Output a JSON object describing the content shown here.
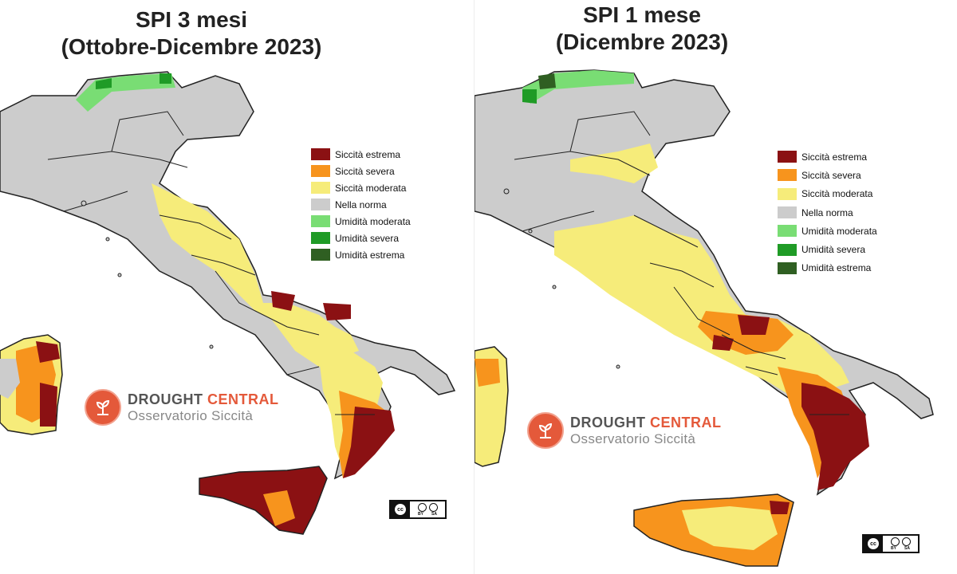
{
  "panels": [
    {
      "title_line1": "SPI 3 mesi",
      "title_line2": "(Ottobre-Dicembre 2023)"
    },
    {
      "title_line1": "SPI 1 mese",
      "title_line2": "(Dicembre 2023)"
    }
  ],
  "legend": [
    {
      "label": "Siccità estrema",
      "color": "#8b1113"
    },
    {
      "label": "Siccità severa",
      "color": "#f7941d"
    },
    {
      "label": "Siccità moderata",
      "color": "#f6ec7a"
    },
    {
      "label": "Nella norma",
      "color": "#cccccc"
    },
    {
      "label": "Umidità moderata",
      "color": "#79dd74"
    },
    {
      "label": "Umidità severa",
      "color": "#1f9b26"
    },
    {
      "label": "Umidità estrema",
      "color": "#2f5f22"
    }
  ],
  "brand": {
    "word1": "DROUGHT",
    "word2": "CENTRAL",
    "subtitle": "Osservatorio Siccità"
  },
  "license": {
    "badge": "cc",
    "by": "BY",
    "sa": "SA"
  },
  "colors": {
    "land": "#cccccc",
    "border": "#222222",
    "sea": "#ffffff",
    "accent": "#e4593a"
  }
}
